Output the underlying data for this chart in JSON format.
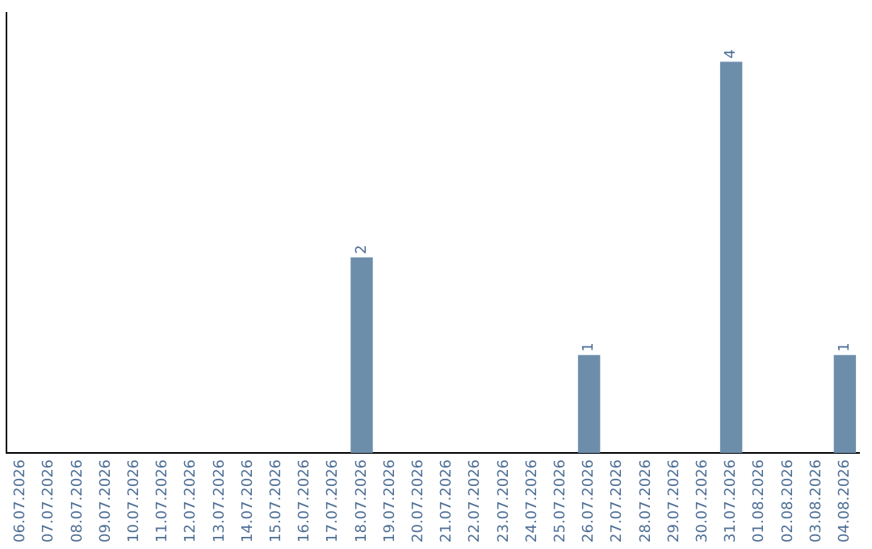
{
  "chart_data": {
    "type": "bar",
    "categories": [
      "06.07.2026",
      "07.07.2026",
      "08.07.2026",
      "09.07.2026",
      "10.07.2026",
      "11.07.2026",
      "12.07.2026",
      "13.07.2026",
      "14.07.2026",
      "15.07.2026",
      "16.07.2026",
      "17.07.2026",
      "18.07.2026",
      "19.07.2026",
      "20.07.2026",
      "21.07.2026",
      "22.07.2026",
      "23.07.2026",
      "24.07.2026",
      "25.07.2026",
      "26.07.2026",
      "27.07.2026",
      "28.07.2026",
      "29.07.2026",
      "30.07.2026",
      "31.07.2026",
      "01.08.2026",
      "02.08.2026",
      "03.08.2026",
      "04.08.2026"
    ],
    "values": [
      null,
      null,
      null,
      null,
      null,
      null,
      null,
      null,
      null,
      null,
      null,
      null,
      2,
      null,
      null,
      null,
      null,
      null,
      null,
      null,
      1,
      null,
      null,
      null,
      null,
      4,
      null,
      null,
      null,
      1
    ],
    "data_labels": true,
    "color": "#6d8eab",
    "grid": false,
    "legend": false,
    "tick_labels": "x"
  }
}
